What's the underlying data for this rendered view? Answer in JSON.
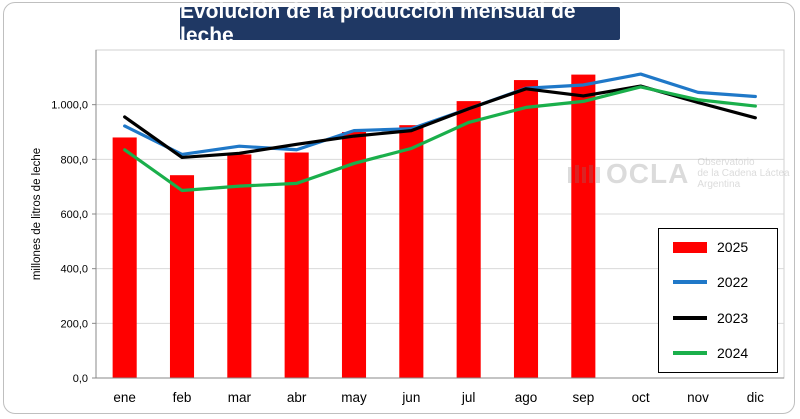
{
  "title": "Evolución de la producción mensual de leche",
  "watermark": {
    "name": "OCLA",
    "line1": "Observatorio",
    "line2": "de la Cadena Láctea",
    "line3": "Argentina"
  },
  "colors": {
    "s2025": "#ff0000",
    "s2022": "#1f78c8",
    "s2023": "#000000",
    "s2024": "#1aaf4b"
  },
  "chart_data": {
    "type": "bar+line",
    "title": "Evolución de la producción mensual de leche",
    "xlabel": "",
    "ylabel": "millones de litros de leche",
    "ylim": [
      0,
      1200
    ],
    "yticks": [
      0,
      200,
      400,
      600,
      800,
      1000
    ],
    "ytick_labels": [
      "0,0",
      "200,0",
      "400,0",
      "600,0",
      "800,0",
      "1.000,0"
    ],
    "categories": [
      "ene",
      "feb",
      "mar",
      "abr",
      "may",
      "jun",
      "jul",
      "ago",
      "sep",
      "oct",
      "nov",
      "dic"
    ],
    "grid": true,
    "legend_position": "right",
    "bars": {
      "name": "2025",
      "values": [
        880,
        742,
        818,
        825,
        900,
        925,
        1013,
        1090,
        1110,
        null,
        null,
        null
      ]
    },
    "lines": [
      {
        "name": "2022",
        "values": [
          922,
          818,
          848,
          835,
          905,
          912,
          985,
          1060,
          1072,
          1112,
          1045,
          1030
        ]
      },
      {
        "name": "2023",
        "values": [
          955,
          807,
          822,
          855,
          885,
          905,
          985,
          1058,
          1032,
          1068,
          1008,
          952
        ]
      },
      {
        "name": "2024",
        "values": [
          835,
          686,
          702,
          712,
          785,
          840,
          935,
          990,
          1012,
          1065,
          1018,
          995
        ]
      }
    ]
  },
  "legend": [
    {
      "label": "2025",
      "kind": "bar",
      "color": "#ff0000"
    },
    {
      "label": "2022",
      "kind": "line",
      "color": "#1f78c8"
    },
    {
      "label": "2023",
      "kind": "line",
      "color": "#000000"
    },
    {
      "label": "2024",
      "kind": "line",
      "color": "#1aaf4b"
    }
  ]
}
